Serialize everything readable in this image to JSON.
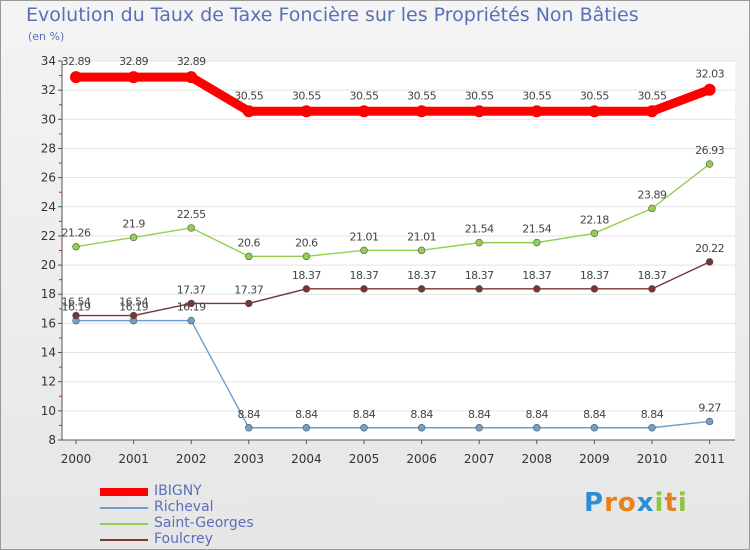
{
  "chart_data": {
    "type": "line",
    "title": "Evolution du Taux de Taxe Foncière sur les Propriétés Non Bâties",
    "subtitle": "(en %)",
    "x": [
      "2000",
      "2001",
      "2002",
      "2003",
      "2004",
      "2005",
      "2006",
      "2007",
      "2008",
      "2009",
      "2010",
      "2011"
    ],
    "ylim": [
      8,
      34
    ],
    "yticks": [
      8,
      10,
      12,
      14,
      16,
      18,
      20,
      22,
      24,
      26,
      28,
      30,
      32,
      34
    ],
    "series": [
      {
        "name": "IBIGNY",
        "color": "#ff0000",
        "emphasis": true,
        "values": [
          32.89,
          32.89,
          32.89,
          30.55,
          30.55,
          30.55,
          30.55,
          30.55,
          30.55,
          30.55,
          30.55,
          32.03
        ],
        "labels": [
          "32.89",
          "32.89",
          "32.89",
          "30.55",
          "30.55",
          "30.55",
          "30.55",
          "30.55",
          "30.55",
          "30.55",
          "30.55",
          "32.03"
        ]
      },
      {
        "name": "Richeval",
        "color": "#6f9fcd",
        "values": [
          16.19,
          16.19,
          16.19,
          8.84,
          8.84,
          8.84,
          8.84,
          8.84,
          8.84,
          8.84,
          8.84,
          9.27
        ],
        "labels": [
          "16.19",
          "16.19",
          "16.19",
          "8.84",
          "8.84",
          "8.84",
          "8.84",
          "8.84",
          "8.84",
          "8.84",
          "8.84",
          "9.27"
        ]
      },
      {
        "name": "Saint-Georges",
        "color": "#92d050",
        "values": [
          21.26,
          21.9,
          22.55,
          20.6,
          20.6,
          21.01,
          21.01,
          21.54,
          21.54,
          22.18,
          23.89,
          26.93
        ],
        "labels": [
          "21.26",
          "21.9",
          "22.55",
          "20.6",
          "20.6",
          "21.01",
          "21.01",
          "21.54",
          "21.54",
          "22.18",
          "23.89",
          "26.93"
        ]
      },
      {
        "name": "Foulcrey",
        "color": "#7a3535",
        "values": [
          16.54,
          16.54,
          17.37,
          17.37,
          18.37,
          18.37,
          18.37,
          18.37,
          18.37,
          18.37,
          18.37,
          20.22
        ],
        "labels": [
          "16.54",
          "16.54",
          "17.37",
          "17.37",
          "18.37",
          "18.37",
          "18.37",
          "18.37",
          "18.37",
          "18.37",
          "18.37",
          "20.22"
        ]
      }
    ]
  },
  "legend": [
    "IBIGNY",
    "Richeval",
    "Saint-Georges",
    "Foulcrey"
  ],
  "brand": {
    "letters": [
      "P",
      "r",
      "o",
      "x",
      "i",
      "t",
      "i"
    ],
    "colors": [
      "#2b8fd6",
      "#e8801c",
      "#e8801c",
      "#2b8fd6",
      "#8cc63f",
      "#e8801c",
      "#8cc63f"
    ]
  }
}
